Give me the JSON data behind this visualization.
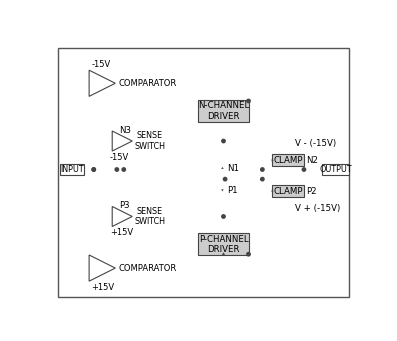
{
  "fig_width": 3.97,
  "fig_height": 3.41,
  "dpi": 100,
  "bg_color": "#ffffff",
  "lc": "#444444",
  "wc": "#888888",
  "box_fill": "#cccccc",
  "labels": {
    "input": "INPUT",
    "output": "OUTPUT",
    "ncd": "N-CHANNEL\nDRIVER",
    "pcd": "P-CHANNEL\nDRIVER",
    "clamp_n2": "CLAMP",
    "clamp_p2": "CLAMP",
    "n1": "N1",
    "p1": "P1",
    "n2": "N2",
    "p2": "P2",
    "n3": "N3",
    "p3": "P3",
    "sense_top": "SENSE\nSWITCH",
    "sense_bot": "SENSE\nSWITCH",
    "comp_top": "COMPARATOR",
    "comp_bot": "COMPARATOR",
    "v_minus": "V - (-15V)",
    "v_plus": "V + (-15V)",
    "neg15_top": "-15V",
    "neg15_mid": "-15V",
    "pos15_mid": "+15V",
    "pos15_bot": "+15V"
  }
}
